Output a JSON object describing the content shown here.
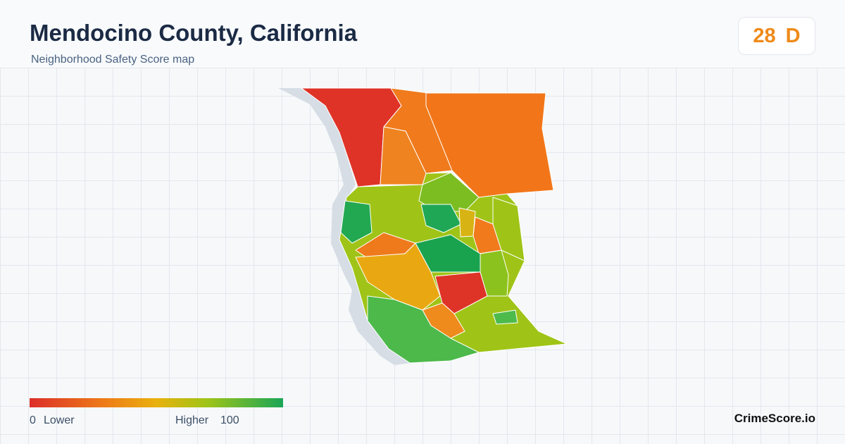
{
  "header": {
    "title": "Mendocino County, California",
    "subtitle": "Neighborhood Safety Score map"
  },
  "score": {
    "value": 28,
    "grade": "D"
  },
  "legend": {
    "min": 0,
    "min_label": "Lower",
    "max_label": "Higher",
    "max": 100
  },
  "brand": "CrimeScore.io"
}
